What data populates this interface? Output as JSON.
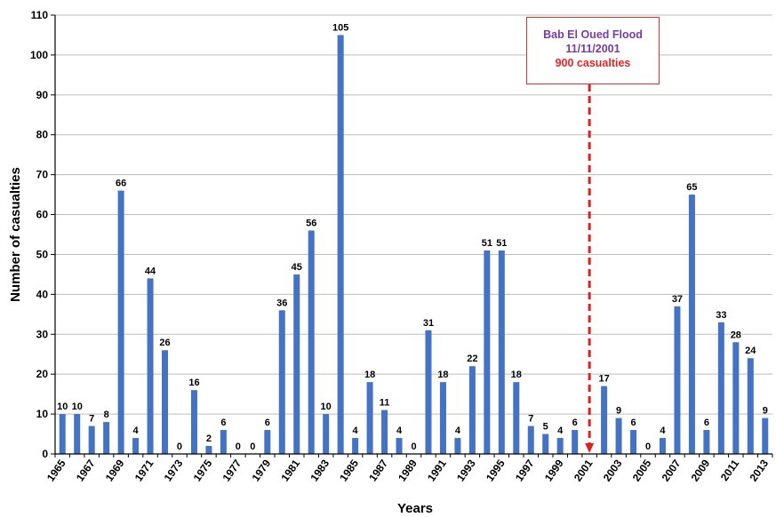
{
  "chart_data": {
    "type": "bar",
    "xlabel": "Years",
    "ylabel": "Number of casualties",
    "ylim": [
      0,
      110
    ],
    "yticks": [
      0,
      10,
      20,
      30,
      40,
      50,
      60,
      70,
      80,
      90,
      100,
      110
    ],
    "grid": "horizontal",
    "bar_color": "#4472c4",
    "categories": [
      "1965",
      "1966",
      "1967",
      "1968",
      "1969",
      "1970",
      "1971",
      "1972",
      "1973",
      "1974",
      "1975",
      "1976",
      "1977",
      "1978",
      "1979",
      "1980",
      "1981",
      "1982",
      "1983",
      "1984",
      "1985",
      "1986",
      "1987",
      "1988",
      "1989",
      "1990",
      "1991",
      "1992",
      "1993",
      "1994",
      "1995",
      "1996",
      "1997",
      "1998",
      "1999",
      "2000",
      "2001",
      "2002",
      "2003",
      "2004",
      "2005",
      "2006",
      "2007",
      "2008",
      "2009",
      "2010",
      "2011",
      "2012",
      "2013"
    ],
    "values": [
      10,
      10,
      7,
      8,
      66,
      4,
      44,
      26,
      0,
      16,
      2,
      6,
      0,
      0,
      6,
      36,
      45,
      56,
      10,
      105,
      4,
      18,
      11,
      4,
      0,
      31,
      18,
      4,
      22,
      51,
      51,
      18,
      7,
      5,
      4,
      6,
      null,
      17,
      9,
      6,
      0,
      4,
      37,
      65,
      6,
      33,
      28,
      24,
      9
    ],
    "xtick_labels": [
      "1965",
      "1967",
      "1969",
      "1971",
      "1973",
      "1975",
      "1977",
      "1979",
      "1981",
      "1983",
      "1985",
      "1987",
      "1989",
      "1991",
      "1993",
      "1995",
      "1997",
      "1999",
      "2001",
      "2003",
      "2005",
      "2007",
      "2009",
      "2011",
      "2013"
    ],
    "annotation": {
      "year": "2001",
      "line_color": "#e02020",
      "title": "Bab El Oued Flood",
      "date": "11/11/2001",
      "casualties": "900 casualties"
    }
  }
}
